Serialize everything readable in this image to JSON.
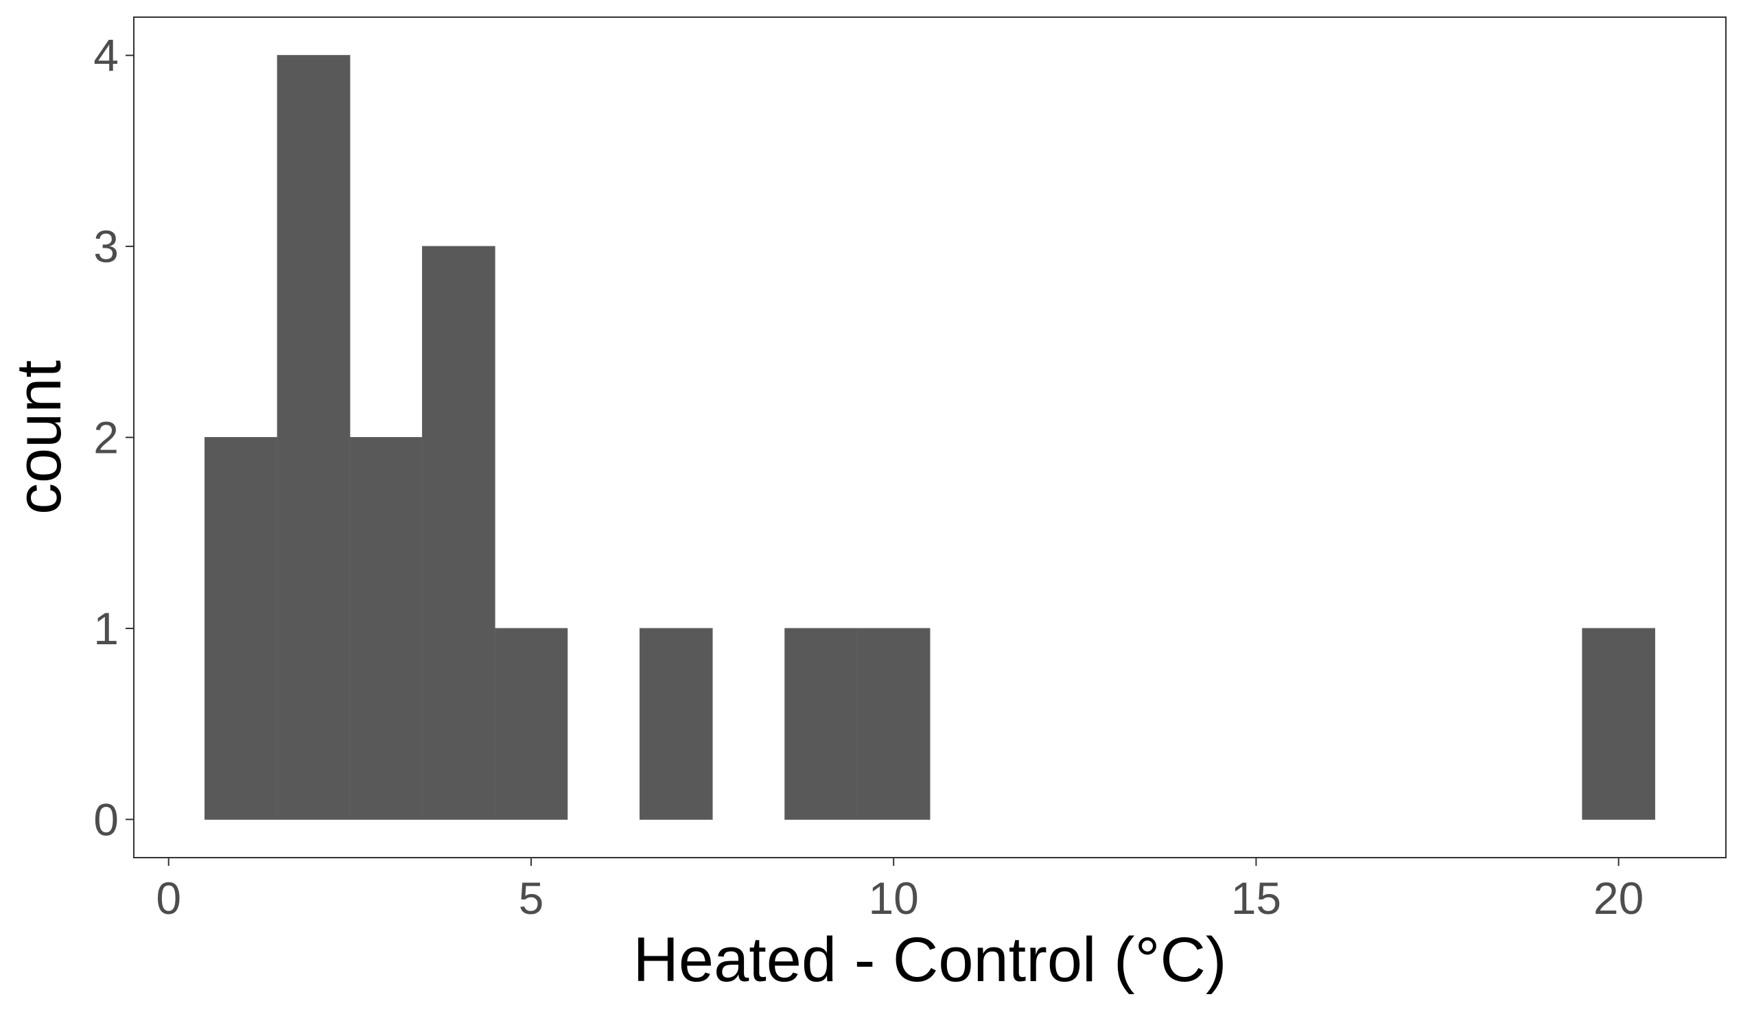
{
  "chart_data": {
    "type": "bar",
    "subtype": "histogram",
    "title": "",
    "xlabel": "Heated - Control (°C)",
    "ylabel": "count",
    "xlim": [
      -0.48,
      21.48
    ],
    "ylim": [
      -0.2,
      4.2
    ],
    "xticks": [
      0,
      5,
      10,
      15,
      20
    ],
    "yticks": [
      0,
      1,
      2,
      3,
      4
    ],
    "bin_width": 1,
    "bins": [
      {
        "x": 1,
        "count": 2
      },
      {
        "x": 2,
        "count": 4
      },
      {
        "x": 3,
        "count": 2
      },
      {
        "x": 4,
        "count": 3
      },
      {
        "x": 5,
        "count": 1
      },
      {
        "x": 6,
        "count": 0
      },
      {
        "x": 7,
        "count": 1
      },
      {
        "x": 8,
        "count": 0
      },
      {
        "x": 9,
        "count": 1
      },
      {
        "x": 10,
        "count": 1
      },
      {
        "x": 20,
        "count": 1
      }
    ],
    "grid": false,
    "bar_color": "#595959",
    "panel_border_color": "#333333"
  }
}
